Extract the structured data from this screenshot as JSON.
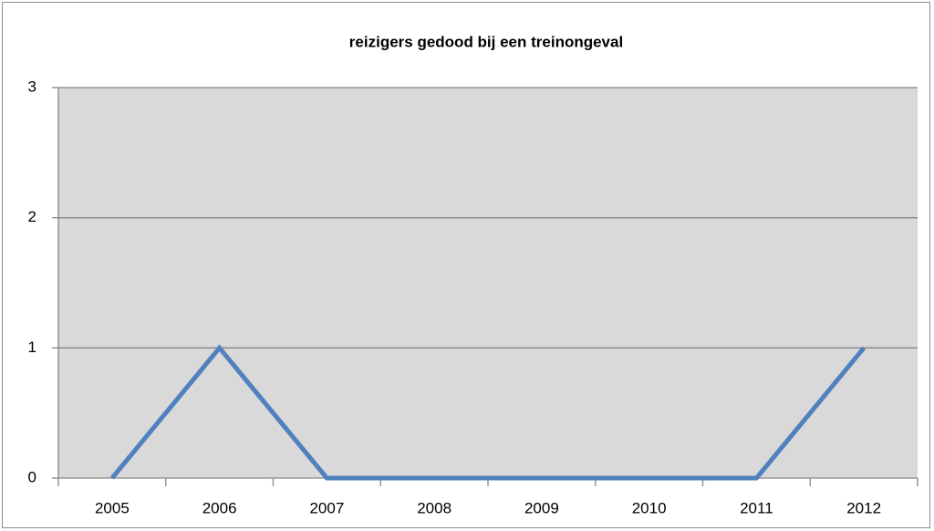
{
  "chart_data": {
    "type": "line",
    "title": "reizigers gedood bij een treinongeval",
    "categories": [
      "2005",
      "2006",
      "2007",
      "2008",
      "2009",
      "2010",
      "2011",
      "2012"
    ],
    "series": [
      {
        "name": "reizigers gedood",
        "color": "#4f81bd",
        "values": [
          0,
          1,
          0,
          0,
          0,
          0,
          0,
          1
        ]
      }
    ],
    "ylim": [
      0,
      3
    ],
    "yticks": [
      0,
      1,
      2,
      3
    ],
    "grid": true,
    "legend": "none"
  }
}
